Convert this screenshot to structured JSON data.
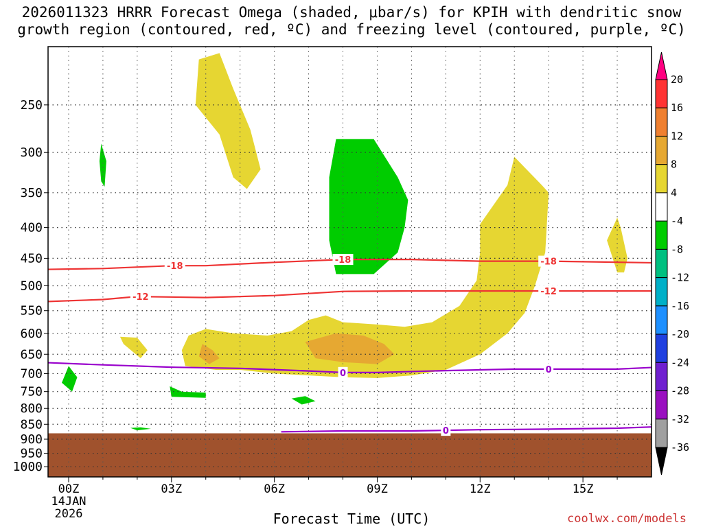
{
  "chart_data": {
    "type": "contour",
    "title_line1": "2026011323 HRRR Forecast Omega (shaded, μbar/s) for KPIH with dendritic snow",
    "title_line2": "growth region (contoured, red, ºC) and freezing level (contoured, purple, ºC)",
    "xlabel": "Forecast Time (UTC)",
    "credit": "coolwx.com/models",
    "x_ticks": [
      {
        "hour": 0,
        "label": "00Z"
      },
      {
        "hour": 3,
        "label": "03Z"
      },
      {
        "hour": 6,
        "label": "06Z"
      },
      {
        "hour": 9,
        "label": "09Z"
      },
      {
        "hour": 12,
        "label": "12Z"
      },
      {
        "hour": 15,
        "label": "15Z"
      }
    ],
    "x_date_line1": "14JAN",
    "x_date_line2": "2026",
    "xlim": [
      -0.6,
      17
    ],
    "y_ticks": [
      250,
      300,
      350,
      400,
      450,
      500,
      550,
      600,
      650,
      700,
      750,
      800,
      850,
      900,
      950,
      1000
    ],
    "ylim_hpa": [
      1040,
      200
    ],
    "ylog": true,
    "ground_pressure_hpa": 880,
    "ground_color": "#a0522d",
    "colorbar": {
      "labels": [
        "20",
        "16",
        "12",
        "8",
        "4",
        "-4",
        "-8",
        "-12",
        "-16",
        "-20",
        "-24",
        "-28",
        "-32",
        "-36"
      ],
      "colors": [
        "#ff3333",
        "#f08030",
        "#e6a832",
        "#e6d632",
        "#ffffff",
        "#00cc00",
        "#00c080",
        "#00b0c8",
        "#1e90ff",
        "#2040e0",
        "#7020d0",
        "#9a10c0",
        "#a0a0a0"
      ],
      "top_arrow_color": "#ff0080",
      "bottom_arrow_color": "#000000"
    },
    "omega_regions": [
      {
        "name": "yellow-upper-plume",
        "level": 4,
        "color": "#e6d632",
        "points": [
          [
            4.4,
            205
          ],
          [
            4.8,
            235
          ],
          [
            5.3,
            275
          ],
          [
            5.6,
            320
          ],
          [
            5.2,
            345
          ],
          [
            4.8,
            330
          ],
          [
            4.4,
            280
          ],
          [
            3.7,
            250
          ],
          [
            3.8,
            210
          ]
        ]
      },
      {
        "name": "green-upper-left-spike",
        "level": -4,
        "color": "#00cc00",
        "points": [
          [
            0.95,
            290
          ],
          [
            1.1,
            310
          ],
          [
            1.05,
            342
          ],
          [
            0.95,
            335
          ],
          [
            0.9,
            310
          ]
        ]
      },
      {
        "name": "green-center-column",
        "level": -4,
        "color": "#00cc00",
        "points": [
          [
            7.8,
            285
          ],
          [
            8.9,
            285
          ],
          [
            9.6,
            330
          ],
          [
            9.9,
            360
          ],
          [
            9.8,
            400
          ],
          [
            9.6,
            440
          ],
          [
            8.9,
            478
          ],
          [
            7.8,
            478
          ],
          [
            7.6,
            420
          ],
          [
            7.6,
            330
          ]
        ]
      },
      {
        "name": "yellow-right-arm",
        "level": 4,
        "color": "#e6d632",
        "points": [
          [
            12.0,
            395
          ],
          [
            12.8,
            340
          ],
          [
            13.0,
            305
          ],
          [
            13.8,
            340
          ],
          [
            14.0,
            350
          ],
          [
            13.9,
            440
          ],
          [
            13.6,
            500
          ],
          [
            13.3,
            555
          ],
          [
            12.8,
            600
          ],
          [
            12.0,
            650
          ],
          [
            11.0,
            690
          ],
          [
            10.0,
            705
          ],
          [
            9.0,
            712
          ],
          [
            8.0,
            710
          ],
          [
            7.0,
            705
          ],
          [
            6.0,
            700
          ],
          [
            5.0,
            690
          ],
          [
            4.3,
            690
          ],
          [
            3.4,
            680
          ],
          [
            3.3,
            640
          ],
          [
            3.5,
            605
          ],
          [
            4.0,
            590
          ],
          [
            4.8,
            600
          ],
          [
            5.8,
            605
          ],
          [
            6.5,
            595
          ],
          [
            7.0,
            570
          ],
          [
            7.5,
            560
          ],
          [
            8.0,
            575
          ],
          [
            9.0,
            580
          ],
          [
            9.8,
            585
          ],
          [
            10.6,
            575
          ],
          [
            11.4,
            540
          ],
          [
            11.9,
            490
          ],
          [
            12.0,
            440
          ]
        ]
      },
      {
        "name": "orange-core",
        "level": 8,
        "color": "#e6a832",
        "points": [
          [
            6.9,
            620
          ],
          [
            7.8,
            600
          ],
          [
            8.6,
            605
          ],
          [
            9.2,
            625
          ],
          [
            9.5,
            650
          ],
          [
            9.0,
            675
          ],
          [
            8.0,
            670
          ],
          [
            7.2,
            660
          ]
        ]
      },
      {
        "name": "orange-small",
        "level": 8,
        "color": "#e6a832",
        "points": [
          [
            3.9,
            625
          ],
          [
            4.2,
            640
          ],
          [
            4.4,
            660
          ],
          [
            4.1,
            675
          ],
          [
            3.8,
            655
          ]
        ]
      },
      {
        "name": "yellow-small-left",
        "level": 4,
        "color": "#e6d632",
        "points": [
          [
            1.5,
            608
          ],
          [
            2.0,
            610
          ],
          [
            2.3,
            640
          ],
          [
            2.1,
            660
          ],
          [
            1.6,
            625
          ]
        ]
      },
      {
        "name": "yellow-right-blob",
        "level": 4,
        "color": "#e6d632",
        "points": [
          [
            16.0,
            385
          ],
          [
            16.1,
            400
          ],
          [
            16.3,
            450
          ],
          [
            16.2,
            475
          ],
          [
            16.0,
            475
          ],
          [
            15.7,
            420
          ]
        ]
      },
      {
        "name": "green-left-diamond",
        "level": -4,
        "color": "#00cc00",
        "points": [
          [
            0.0,
            680
          ],
          [
            0.25,
            710
          ],
          [
            0.1,
            750
          ],
          [
            -0.2,
            725
          ]
        ]
      },
      {
        "name": "green-mid-left",
        "level": -4,
        "color": "#00cc00",
        "points": [
          [
            2.95,
            735
          ],
          [
            3.3,
            750
          ],
          [
            4.0,
            753
          ],
          [
            4.0,
            768
          ],
          [
            3.0,
            765
          ]
        ]
      },
      {
        "name": "green-mid-small",
        "level": -4,
        "color": "#00cc00",
        "points": [
          [
            6.5,
            770
          ],
          [
            6.9,
            763
          ],
          [
            7.2,
            778
          ],
          [
            6.8,
            788
          ]
        ]
      },
      {
        "name": "green-lower-small",
        "level": -4,
        "color": "#00cc00",
        "points": [
          [
            1.8,
            862
          ],
          [
            2.1,
            860
          ],
          [
            2.4,
            865
          ],
          [
            2.0,
            870
          ]
        ]
      }
    ],
    "contours": [
      {
        "name": "dgz-minus18",
        "label": "-18",
        "color": "#ee3333",
        "points": [
          [
            -1,
            470
          ],
          [
            1,
            468
          ],
          [
            3,
            463
          ],
          [
            4,
            463
          ],
          [
            6,
            457
          ],
          [
            8,
            452
          ],
          [
            10,
            452
          ],
          [
            12,
            455
          ],
          [
            14,
            455
          ],
          [
            17.2,
            458
          ]
        ],
        "label_hours": [
          3.1,
          8,
          14
        ]
      },
      {
        "name": "dgz-minus12",
        "label": "-12",
        "color": "#ee3333",
        "points": [
          [
            -1,
            532
          ],
          [
            1,
            527
          ],
          [
            2,
            521
          ],
          [
            4,
            523
          ],
          [
            6,
            519
          ],
          [
            8,
            511
          ],
          [
            10,
            510
          ],
          [
            12,
            510
          ],
          [
            14,
            510
          ],
          [
            17.2,
            510
          ]
        ],
        "label_hours": [
          2.1,
          14
        ]
      },
      {
        "name": "freezing-level-upper",
        "label": "0",
        "color": "#9900cc",
        "points": [
          [
            -1,
            670
          ],
          [
            1,
            677
          ],
          [
            3,
            683
          ],
          [
            5,
            686
          ],
          [
            7,
            693
          ],
          [
            8,
            697
          ],
          [
            9,
            697
          ],
          [
            11,
            692
          ],
          [
            13,
            688
          ],
          [
            15,
            688
          ],
          [
            16,
            688
          ],
          [
            17.2,
            683
          ]
        ],
        "label_hours": [
          8,
          14
        ]
      },
      {
        "name": "freezing-level-lower",
        "label": "0",
        "color": "#9900cc",
        "points": [
          [
            6.2,
            875
          ],
          [
            8,
            872
          ],
          [
            10,
            872
          ],
          [
            12,
            868
          ],
          [
            14,
            866
          ],
          [
            16,
            863
          ],
          [
            17.2,
            858
          ]
        ],
        "label_hours": [
          11
        ]
      }
    ]
  }
}
